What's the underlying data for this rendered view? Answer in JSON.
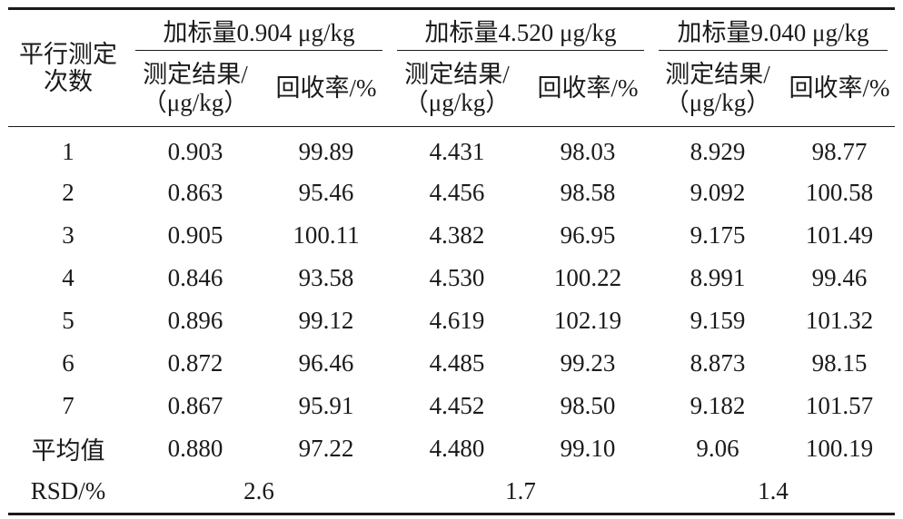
{
  "table": {
    "row_header": [
      "平行测定",
      "次数"
    ],
    "groups": [
      {
        "label": "加标量0.904 μg/kg"
      },
      {
        "label": "加标量4.520 μg/kg"
      },
      {
        "label": "加标量9.040 μg/kg"
      }
    ],
    "sub_headers": {
      "result_line1": "测定结果/",
      "result_line2": "（μg/kg）",
      "recovery": "回收率/%"
    },
    "rows": [
      {
        "label": "1",
        "values": [
          "0.903",
          "99.89",
          "4.431",
          "98.03",
          "8.929",
          "98.77"
        ]
      },
      {
        "label": "2",
        "values": [
          "0.863",
          "95.46",
          "4.456",
          "98.58",
          "9.092",
          "100.58"
        ]
      },
      {
        "label": "3",
        "values": [
          "0.905",
          "100.11",
          "4.382",
          "96.95",
          "9.175",
          "101.49"
        ]
      },
      {
        "label": "4",
        "values": [
          "0.846",
          "93.58",
          "4.530",
          "100.22",
          "8.991",
          "99.46"
        ]
      },
      {
        "label": "5",
        "values": [
          "0.896",
          "99.12",
          "4.619",
          "102.19",
          "9.159",
          "101.32"
        ]
      },
      {
        "label": "6",
        "values": [
          "0.872",
          "96.46",
          "4.485",
          "99.23",
          "8.873",
          "98.15"
        ]
      },
      {
        "label": "7",
        "values": [
          "0.867",
          "95.91",
          "4.452",
          "98.50",
          "9.182",
          "101.57"
        ]
      },
      {
        "label": "平均值",
        "values": [
          "0.880",
          "97.22",
          "4.480",
          "99.10",
          "9.06",
          "100.19"
        ]
      }
    ],
    "rsd": {
      "label": "RSD/%",
      "values": [
        "2.6",
        "1.7",
        "1.4"
      ]
    }
  }
}
